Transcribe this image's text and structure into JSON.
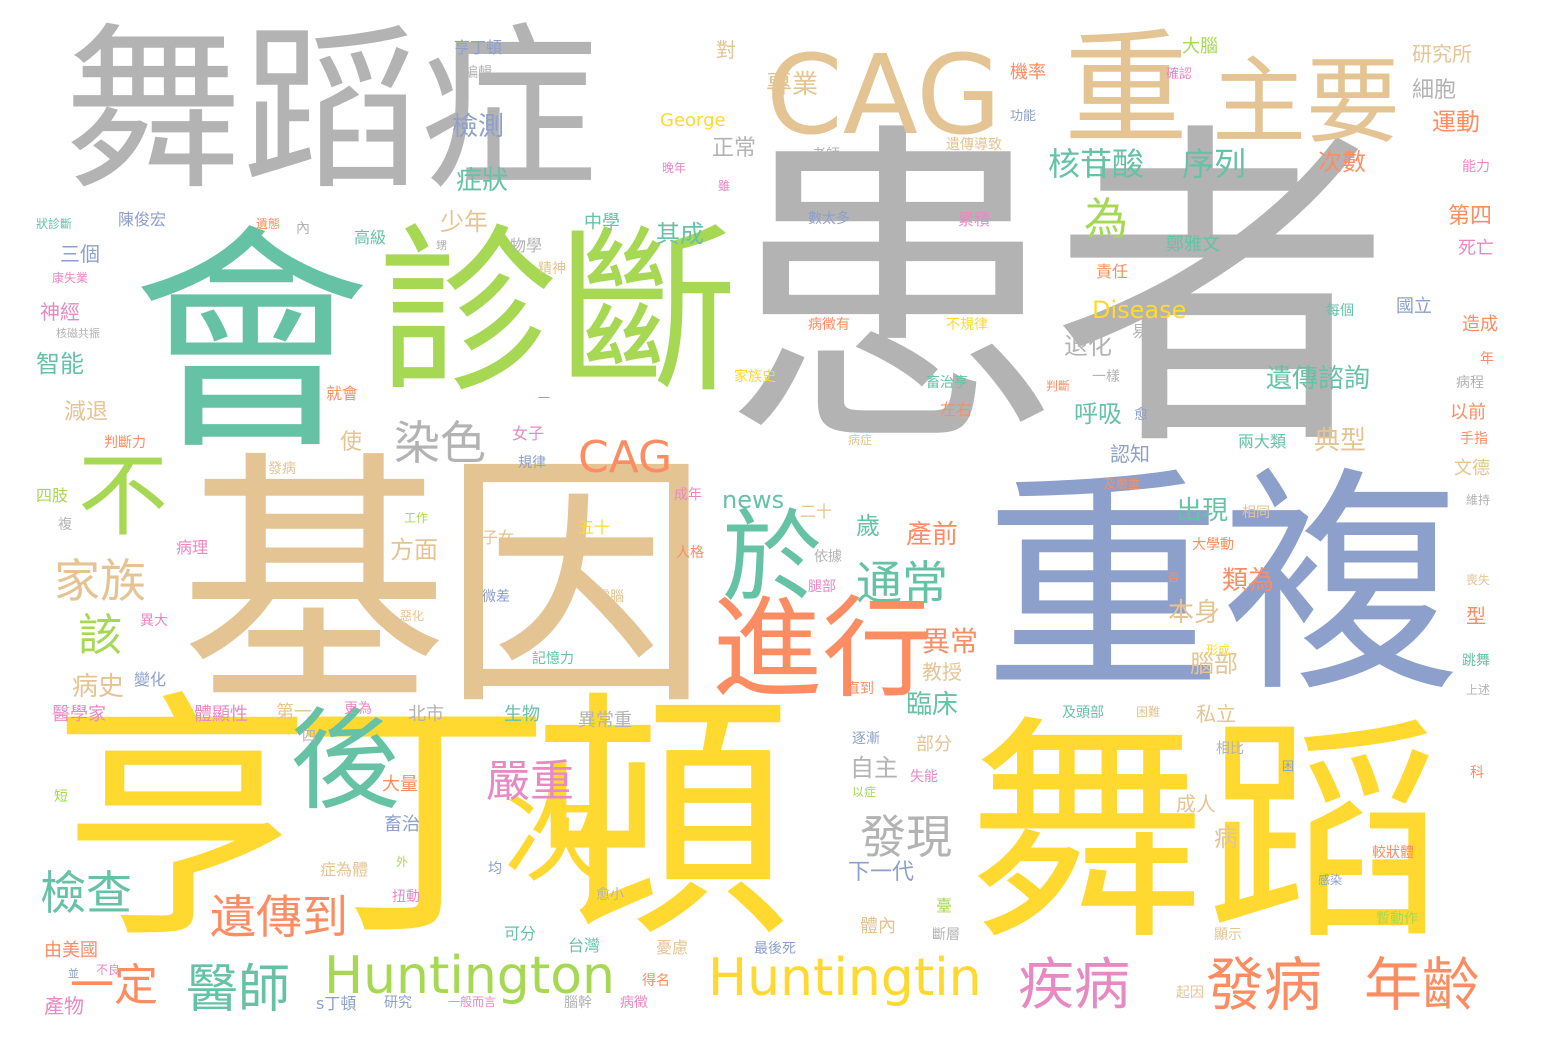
{
  "colors": {
    "gray": "#b3b3b3",
    "tan": "#e5c494",
    "green": "#66c2a5",
    "lime": "#a6d854",
    "blue": "#8da0cb",
    "yellow": "#ffd92f",
    "orange": "#fc8d62",
    "pink": "#e78ac3"
  },
  "words": {
    "w01": "患者",
    "w02": "基因",
    "w03": "重複",
    "w04": "亨丁頓",
    "w05": "舞蹈",
    "w06": "會",
    "w07": "診斷",
    "w08": "舞蹈症",
    "w09": "CAG",
    "w10": "重",
    "w11": "主要",
    "w12": "進行",
    "w13": "後",
    "w14": "於",
    "w15": "次",
    "w16": "不",
    "w17": "Huntington",
    "w18": "Huntingtin",
    "w19": "發病",
    "w20": "年齡",
    "w21": "疾病",
    "w22": "醫師",
    "w23": "遺傳到",
    "w24": "檢查",
    "w25": "家族",
    "w26": "通常",
    "w27": "發現",
    "w28": "染色",
    "w29": "CAG",
    "w30": "嚴重",
    "w31": "一定",
    "w32": "核苷酸",
    "w33": "序列",
    "w34": "為",
    "w35": "該",
    "w36": "檢測",
    "w37": "症狀",
    "w38": "專業",
    "w39": "遺傳諮詢",
    "w40": "典型",
    "w41": "異常",
    "w42": "臨床",
    "w43": "產前",
    "w44": "出現",
    "w45": "類為",
    "w46": "本身",
    "w47": "腦部",
    "w48": "自主",
    "w49": "退化",
    "w50": "呼吸",
    "w51": "認知",
    "w52": "病史",
    "w53": "方面",
    "w54": "其成",
    "w55": "少年",
    "w56": "運動",
    "w57": "次數",
    "w58": "細胞",
    "w59": "研究所",
    "w60": "正常",
    "w61": "Disease",
    "w62": "news",
    "w63": "George",
    "w64": "老師",
    "w65": "對",
    "w66": "編輯",
    "w67": "亨丁頓",
    "w68": "大腦",
    "w69": "確認",
    "w70": "機率",
    "w71": "功能",
    "w72": "遺傳導致",
    "w73": "能力",
    "w74": "數太多",
    "w75": "累積",
    "w76": "病徵有",
    "w77": "不規律",
    "w78": "第四",
    "w79": "死亡",
    "w80": "鄭雅文",
    "w81": "責任",
    "w82": "國立",
    "w83": "每個",
    "w84": "造成",
    "w85": "易怒",
    "w86": "年",
    "w87": "病程",
    "w88": "以前",
    "w89": "手指",
    "w90": "文德",
    "w91": "維持",
    "w92": "兩大類",
    "w93": "一樣",
    "w94": "判斷",
    "w95": "家族史",
    "w96": "就會",
    "w97": "左右",
    "w98": "畜治亨",
    "w99": "愈",
    "w100": "病症",
    "w101": "及嚴重",
    "w102": "成年",
    "w103": "相同",
    "w104": "二十",
    "w105": "歲",
    "w106": "大學動",
    "w107": "五十",
    "w108": "子女",
    "w109": "人格",
    "w110": "依據",
    "w111": "腿部",
    "w112": "否",
    "w113": "喪失",
    "w114": "型",
    "w115": "微差",
    "w116": "電腦",
    "w117": "記憶力",
    "w118": "惡化",
    "w119": "形成",
    "w120": "跳舞",
    "w121": "上述",
    "w122": "教授",
    "w123": "直到",
    "w124": "部分",
    "w125": "及頭部",
    "w126": "困難",
    "w127": "私立",
    "w128": "逐漸",
    "w129": "失能",
    "w130": "以症",
    "w131": "相比",
    "w132": "困",
    "w133": "科",
    "w134": "成人",
    "w135": "病",
    "w136": "較狀體",
    "w137": "感染",
    "w138": "暫動作",
    "w139": "下一代",
    "w140": "體內",
    "w141": "畜治",
    "w142": "大量",
    "w143": "外",
    "w144": "症為體",
    "w145": "扭動",
    "w146": "愈小",
    "w147": "均",
    "w148": "可分",
    "w149": "台灣",
    "w150": "憂慮",
    "w151": "最後死",
    "w152": "臺",
    "w153": "斷層",
    "w154": "顯示",
    "w155": "起因",
    "w156": "研究",
    "w157": "一般而言",
    "w158": "腦幹",
    "w159": "病徵",
    "w160": "得名",
    "w161": "s丁頓",
    "w162": "產物",
    "w163": "由美國",
    "w164": "並",
    "w165": "不良",
    "w166": "短",
    "w167": "醫學家",
    "w168": "變化",
    "w169": "異大",
    "w170": "病理",
    "w171": "複",
    "w172": "四肢",
    "w173": "判斷力",
    "w174": "減退",
    "w175": "智能",
    "w176": "神經",
    "w177": "核磁共振",
    "w178": "康失業",
    "w179": "三個",
    "w180": "狀診斷",
    "w181": "陳俊宏",
    "w182": "遺態",
    "w183": "內",
    "w184": "高級",
    "w185": "物學",
    "w186": "精神",
    "w187": "中學",
    "w188": "發病",
    "w189": "使",
    "w190": "女子",
    "w191": "規律",
    "w192": "工作",
    "w193": "體顯性",
    "w194": "第一",
    "w195": "更為",
    "w196": "北市",
    "w197": "生物",
    "w198": "異常重",
    "w199": "四",
    "w200": "甥",
    "w201": "一",
    "w202": "晚年",
    "w203": "雖"
  }
}
